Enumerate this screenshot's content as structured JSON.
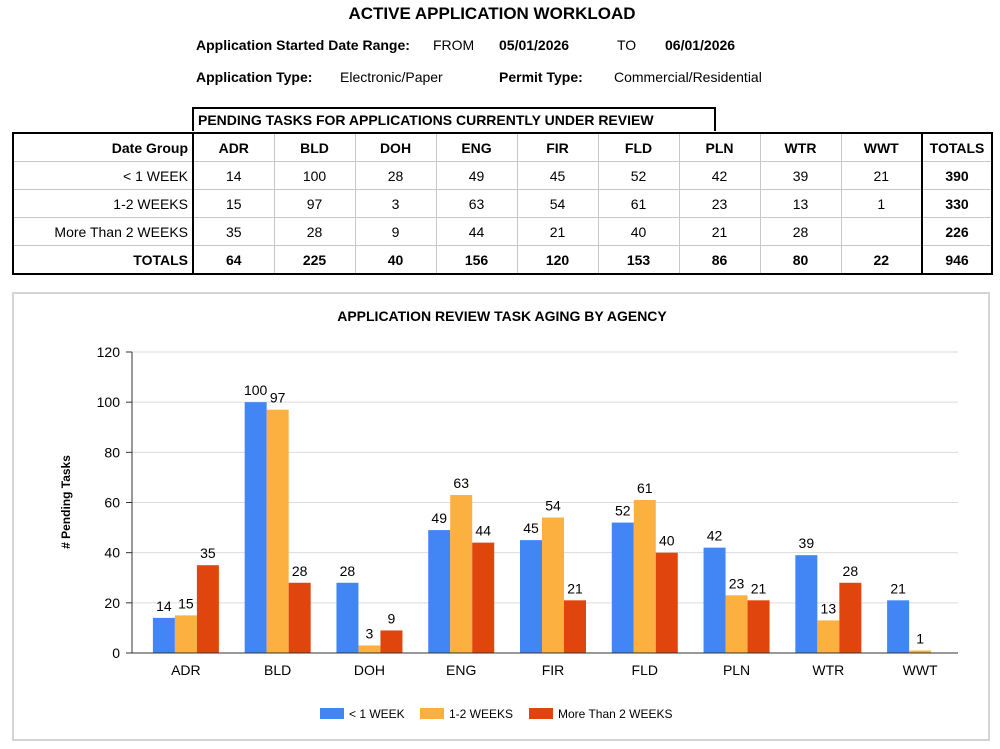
{
  "header": {
    "title": "ACTIVE APPLICATION WORKLOAD",
    "date_range_label": "Application Started Date Range:",
    "from_label": "FROM",
    "from_date": "05/01/2026",
    "to_label": "TO",
    "to_date": "06/01/2026",
    "app_type_label": "Application Type:",
    "app_type_value": "Electronic/Paper",
    "permit_type_label": "Permit Type:",
    "permit_type_value": "Commercial/Residential"
  },
  "table": {
    "caption": "PENDING TASKS FOR APPLICATIONS CURRENTLY UNDER REVIEW",
    "columns": [
      "Date Group",
      "ADR",
      "BLD",
      "DOH",
      "ENG",
      "FIR",
      "FLD",
      "PLN",
      "WTR",
      "WWT",
      "TOTALS"
    ],
    "rows": [
      [
        "< 1 WEEK",
        "14",
        "100",
        "28",
        "49",
        "45",
        "52",
        "42",
        "39",
        "21",
        "390"
      ],
      [
        "1-2 WEEKS",
        "15",
        "97",
        "3",
        "63",
        "54",
        "61",
        "23",
        "13",
        "1",
        "330"
      ],
      [
        "More Than 2 WEEKS",
        "35",
        "28",
        "9",
        "44",
        "21",
        "40",
        "21",
        "28",
        "",
        "226"
      ],
      [
        "TOTALS",
        "64",
        "225",
        "40",
        "156",
        "120",
        "153",
        "86",
        "80",
        "22",
        "946"
      ]
    ]
  },
  "chart_data": {
    "type": "bar",
    "title": "APPLICATION REVIEW TASK AGING BY AGENCY",
    "xlabel": "",
    "ylabel": "# Pending Tasks",
    "ylim": [
      0,
      120
    ],
    "yticks": [
      0,
      20,
      40,
      60,
      80,
      100,
      120
    ],
    "grid": true,
    "legend_position": "bottom",
    "categories": [
      "ADR",
      "BLD",
      "DOH",
      "ENG",
      "FIR",
      "FLD",
      "PLN",
      "WTR",
      "WWT"
    ],
    "series": [
      {
        "name": "< 1 WEEK",
        "color": "#4285f4",
        "values": [
          14,
          100,
          28,
          49,
          45,
          52,
          42,
          39,
          21
        ]
      },
      {
        "name": "1-2 WEEKS",
        "color": "#fbb040",
        "values": [
          15,
          97,
          3,
          63,
          54,
          61,
          23,
          13,
          1
        ]
      },
      {
        "name": "More Than 2 WEEKS",
        "color": "#e0450e",
        "values": [
          35,
          28,
          9,
          44,
          21,
          40,
          21,
          28,
          null
        ]
      }
    ]
  }
}
